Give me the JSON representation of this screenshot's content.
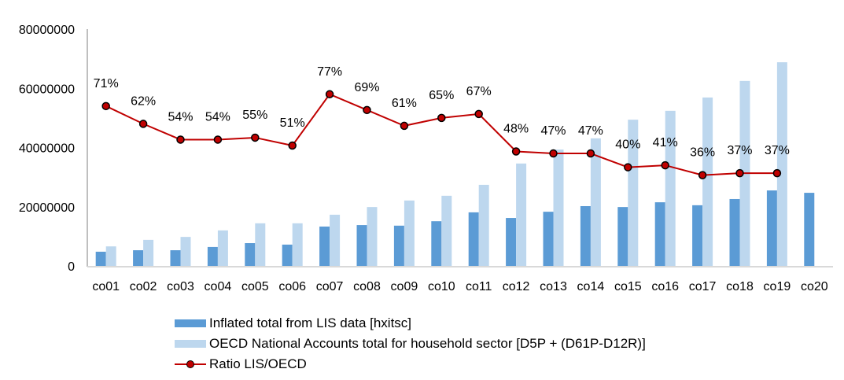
{
  "chart_data": {
    "type": "bar",
    "title": "",
    "xlabel": "",
    "ylabel": "",
    "ylim": [
      0,
      80000000
    ],
    "y2lim": [
      -10,
      110
    ],
    "y_ticks": [
      "0",
      "20000000",
      "40000000",
      "60000000",
      "80000000"
    ],
    "y_tick_values": [
      0,
      20000000,
      40000000,
      60000000,
      80000000
    ],
    "grid": false,
    "legend_position": "bottom",
    "categories": [
      "co01",
      "co02",
      "co03",
      "co04",
      "co05",
      "co06",
      "co07",
      "co08",
      "co09",
      "co10",
      "co11",
      "co12",
      "co13",
      "co14",
      "co15",
      "co16",
      "co17",
      "co18",
      "co19",
      "co20"
    ],
    "series": [
      {
        "name": "Inflated total from LIS data [hxitsc]",
        "type": "bar",
        "color": "#5b9bd5",
        "values": [
          4800000,
          5300000,
          5300000,
          6400000,
          7700000,
          7200000,
          13300000,
          13800000,
          13600000,
          15100000,
          18100000,
          16200000,
          18300000,
          20200000,
          19900000,
          21500000,
          20500000,
          22600000,
          25500000,
          24700000
        ]
      },
      {
        "name": "OECD National Accounts total for household sector [D5P + (D61P-D12R)]",
        "type": "bar",
        "color": "#bdd7ee",
        "values": [
          6600000,
          8800000,
          9800000,
          12000000,
          14400000,
          14400000,
          17300000,
          19900000,
          22100000,
          23700000,
          27400000,
          34600000,
          39300000,
          43100000,
          49400000,
          52400000,
          56900000,
          62500000,
          68800000,
          null
        ]
      },
      {
        "name": "Ratio LIS/OECD",
        "type": "line",
        "axis": "secondary",
        "color": "#c00000",
        "values": [
          71,
          62,
          54,
          54,
          55,
          51,
          77,
          69,
          61,
          65,
          67,
          48,
          47,
          47,
          40,
          41,
          36,
          37,
          37,
          null
        ],
        "labels": [
          "71%",
          "62%",
          "54%",
          "54%",
          "55%",
          "51%",
          "77%",
          "69%",
          "61%",
          "65%",
          "67%",
          "48%",
          "47%",
          "47%",
          "40%",
          "41%",
          "36%",
          "37%",
          "37%",
          ""
        ]
      }
    ]
  }
}
